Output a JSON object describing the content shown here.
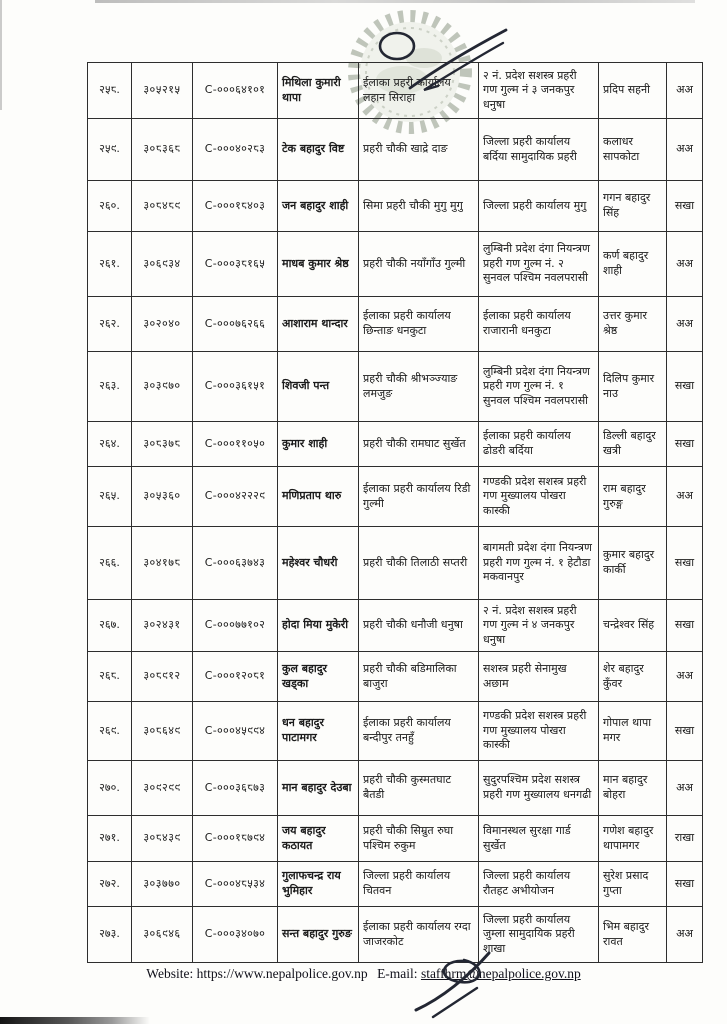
{
  "page": {
    "paper_color": "#fdfdfb",
    "ink_color": "#1b1b1b",
    "border_color": "#2e2e2e",
    "stamp_color": "#96a08f",
    "signature_color": "#232733"
  },
  "stamp": {
    "description": "faded circular official stamp with wreath border, overlapped by handwritten signature"
  },
  "table": {
    "columns": [
      "sn",
      "reg_no",
      "citizenship_no",
      "name",
      "from_office",
      "to_office",
      "recommender",
      "remark"
    ],
    "rows": [
      {
        "sn": "२५८.",
        "reg_no": "३०५२१५",
        "citizenship_no": "C-०००६४१०१",
        "name": "मिथिला कुमारी थापा",
        "from_office": "ईलाका प्रहरी कार्यालय लहान सिराहा",
        "to_office": "२ नं. प्रदेश सशस्त्र प्रहरी गण गुल्म नं ३ जनकपुर धनुषा",
        "recommender": "प्रदिप सहनी",
        "remark": "अअ"
      },
      {
        "sn": "२५९.",
        "reg_no": "३०८३६८",
        "citizenship_no": "C-०००४०२८३",
        "name": "टेक बहादुर विष्ट",
        "from_office": "प्रहरी चौकी खाद्रे दाङ",
        "to_office": "जिल्ला प्रहरी कार्यालय बर्दिया सामुदायिक प्रहरी",
        "recommender": "कलाधर सापकोटा",
        "remark": "अअ"
      },
      {
        "sn": "२६०.",
        "reg_no": "३०८४८९",
        "citizenship_no": "C-०००१८४०३",
        "name": "जन बहादुर शाही",
        "from_office": "सिमा प्रहरी चौकी मुगु मुगु",
        "to_office": "जिल्ला प्रहरी कार्यालय मुगु",
        "recommender": "गगन बहादुर सिंह",
        "remark": "सखा"
      },
      {
        "sn": "२६१.",
        "reg_no": "३०६९३४",
        "citizenship_no": "C-०००३८१६५",
        "name": "माधब कुमार श्रेष्ठ",
        "from_office": "प्रहरी चौकी नयाँगाँउ गुल्मी",
        "to_office": "लुम्बिनी प्रदेश दंगा नियन्त्रण प्रहरी गण गुल्म नं. २ सुनवल पश्चिम नवलपरासी",
        "recommender": "कर्ण बहादुर शाही",
        "remark": "अअ"
      },
      {
        "sn": "२६२.",
        "reg_no": "३०२०४०",
        "citizenship_no": "C-०००७६२६६",
        "name": "आशाराम थान्दार",
        "from_office": "ईलाका प्रहरी कार्यालय छिन्ताङ धनकुटा",
        "to_office": "ईलाका प्रहरी कार्यालय राजारानी धनकुटा",
        "recommender": "उत्तर कुमार श्रेष्ठ",
        "remark": "अअ"
      },
      {
        "sn": "२६३.",
        "reg_no": "३०३९७०",
        "citizenship_no": "C-०००३६१५१",
        "name": "शिवजी पन्त",
        "from_office": "प्रहरी चौकी श्रीभञ्ज्याङ लमजुङ",
        "to_office": "लुम्बिनी प्रदेश दंगा नियन्त्रण प्रहरी गण गुल्म नं. १ सुनवल पश्चिम नवलपरासी",
        "recommender": "दिलिप कुमार नाउ",
        "remark": "सखा"
      },
      {
        "sn": "२६४.",
        "reg_no": "३०८३७८",
        "citizenship_no": "C-०००११०५०",
        "name": "कुमार शाही",
        "from_office": "प्रहरी चौकी रामघाट सुर्खेत",
        "to_office": "ईलाका प्रहरी कार्यालय ढोडरी बर्दिया",
        "recommender": "डिल्ली बहादुर खत्री",
        "remark": "सखा"
      },
      {
        "sn": "२६५.",
        "reg_no": "३०५३६०",
        "citizenship_no": "C-०००४२२२९",
        "name": "मणिप्रताप थारु",
        "from_office": "ईलाका प्रहरी कार्यालय रिडी गुल्मी",
        "to_office": "गण्डकी प्रदेश सशस्त्र प्रहरी गण मुख्यालय पोखरा कास्की",
        "recommender": "राम बहादुर गुरुङ्ग",
        "remark": "अअ"
      },
      {
        "sn": "२६६.",
        "reg_no": "३०४१७८",
        "citizenship_no": "C-०००६३७४३",
        "name": "महेश्वर चौधरी",
        "from_office": "प्रहरी चौकी तिलाठी सप्तरी",
        "to_office": "बागमती प्रदेश दंगा नियन्त्रण प्रहरी गण गुल्म नं. १ हेटौडा मकवानपुर",
        "recommender": "कुमार बहादुर कार्की",
        "remark": "सखा"
      },
      {
        "sn": "२६७.",
        "reg_no": "३०२४३१",
        "citizenship_no": "C-०००७७१०२",
        "name": "होदा मिया मुकेरी",
        "from_office": "प्रहरी चौकी धनौजी धनुषा",
        "to_office": "२ नं. प्रदेश सशस्त्र प्रहरी गण गुल्म नं ४ जनकपुर धनुषा",
        "recommender": "चन्द्रेश्वर सिंह",
        "remark": "सखा"
      },
      {
        "sn": "२६८.",
        "reg_no": "३०८९१२",
        "citizenship_no": "C-०००१२०८१",
        "name": "कुल बहादुर खड्का",
        "from_office": "प्रहरी चौकी बडिमालिका बाजुरा",
        "to_office": "सशस्त्र प्रहरी सेनामुख अछाम",
        "recommender": "शेर बहादुर कुँवर",
        "remark": "अअ"
      },
      {
        "sn": "२६९.",
        "reg_no": "३०८६४९",
        "citizenship_no": "C-०००४५९९४",
        "name": "धन बहादुर पाटामगर",
        "from_office": "ईलाका प्रहरी कार्यालय बन्दीपुर तनहुँ",
        "to_office": "गण्डकी प्रदेश सशस्त्र प्रहरी गण मुख्यालय पोखरा कास्की",
        "recommender": "गोपाल थापा मगर",
        "remark": "सखा"
      },
      {
        "sn": "२७०.",
        "reg_no": "३०९२९९",
        "citizenship_no": "C-०००३६८७३",
        "name": "मान बहादुर देउबा",
        "from_office": "प्रहरी चौकी कुस्मतघाट बैतडी",
        "to_office": "सुदुरपश्चिम प्रदेश सशस्त्र प्रहरी गण मुख्यालय धनगढी",
        "recommender": "मान बहादुर बोहरा",
        "remark": "अअ"
      },
      {
        "sn": "२७१.",
        "reg_no": "३०८४३९",
        "citizenship_no": "C-०००१८७९४",
        "name": "जय बहादुर कठायत",
        "from_office": "प्रहरी चौकी सिम्रुत रुघा पश्चिम रुकुम",
        "to_office": "विमानस्थल सुरक्षा गार्ड सुर्खेत",
        "recommender": "गणेश बहादुर थापामगर",
        "remark": "राखा"
      },
      {
        "sn": "२७२.",
        "reg_no": "३०३७७०",
        "citizenship_no": "C-०००४८५३४",
        "name": "गुलाफचन्द्र राय भुमिहार",
        "from_office": "जिल्ला प्रहरी कार्यालय चितवन",
        "to_office": "जिल्ला प्रहरी कार्यालय रौतहट अभीयोजन",
        "recommender": "सुरेश प्रसाद गुप्ता",
        "remark": "सखा"
      },
      {
        "sn": "२७३.",
        "reg_no": "३०६९४६",
        "citizenship_no": "C-०००३४०७०",
        "name": "सन्त बहादुर गुरुङ",
        "from_office": "ईलाका प्रहरी कार्यालय रग्दा जाजरकोट",
        "to_office": "जिल्ला प्रहरी कार्यालय जुम्ला सामुदायिक प्रहरी शाखा",
        "recommender": "भिम बहादुर रावत",
        "remark": "अअ"
      }
    ]
  },
  "footer": {
    "website_label": "Website:",
    "website": "https://www.nepalpolice.gov.np",
    "email_label": "E-mail:",
    "email": "staffhrm@nepalpolice.gov.np"
  }
}
